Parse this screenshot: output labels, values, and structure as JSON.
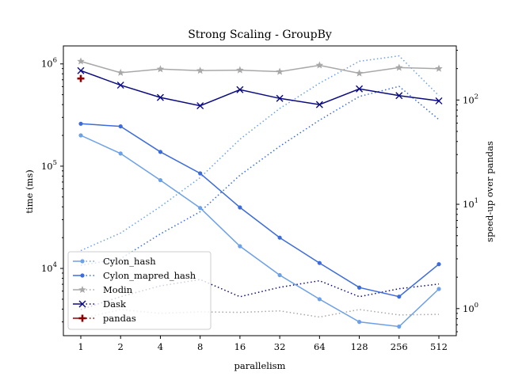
{
  "chart_data": {
    "type": "line",
    "title": "Strong Scaling - GroupBy",
    "xlabel": "parallelism",
    "ylabel": "time (ms)",
    "y2label": "speed-up over pandas",
    "x_scale": "log2",
    "y_scale": "log",
    "y2_scale": "log",
    "categories": [
      "1",
      "2",
      "4",
      "8",
      "16",
      "32",
      "64",
      "128",
      "256",
      "512"
    ],
    "y_ticks": [
      {
        "value": 10000,
        "label": "10^4"
      },
      {
        "value": 100000,
        "label": "10^5"
      },
      {
        "value": 1000000,
        "label": "10^6"
      }
    ],
    "y2_ticks": [
      {
        "value": 1,
        "label": "10^0"
      },
      {
        "value": 10,
        "label": "10^1"
      },
      {
        "value": 100,
        "label": "10^2"
      }
    ],
    "ylim": [
      2200,
      1500000
    ],
    "y2lim": [
      0.55,
      330
    ],
    "legend_position": "bottom-left",
    "grid": false,
    "series": [
      {
        "name": "Cylon_hash",
        "color": "#6ca0e8",
        "marker": "dot",
        "time_ms": [
          200000,
          133000,
          73000,
          39000,
          16500,
          8600,
          5000,
          3000,
          2700,
          6300
        ],
        "speedup": [
          3.6,
          5.3,
          9.5,
          18,
          42,
          83,
          145,
          235,
          265,
          110
        ]
      },
      {
        "name": "Cylon_mapred_hash",
        "color": "#3c6cdc",
        "marker": "dot",
        "time_ms": [
          260000,
          245000,
          138000,
          85000,
          39500,
          20000,
          11300,
          6500,
          5300,
          11000
        ],
        "speedup": [
          2.6,
          3,
          5.2,
          8.5,
          19,
          36,
          64,
          108,
          135,
          65
        ]
      },
      {
        "name": "Modin",
        "color": "#a8a8a8",
        "marker": "star",
        "time_ms": [
          1060000,
          820000,
          890000,
          860000,
          870000,
          840000,
          970000,
          810000,
          920000,
          900000
        ],
        "speedup": [
          0.8,
          0.98,
          0.9,
          0.93,
          0.92,
          0.95,
          0.83,
          0.98,
          0.87,
          0.88
        ]
      },
      {
        "name": "Dask",
        "color": "#0a0a80",
        "marker": "x",
        "time_ms": [
          860000,
          620000,
          470000,
          390000,
          560000,
          460000,
          400000,
          570000,
          490000,
          435000
        ],
        "speedup": [
          0.98,
          1.3,
          1.65,
          1.9,
          1.3,
          1.6,
          1.85,
          1.3,
          1.55,
          1.72
        ]
      },
      {
        "name": "pandas",
        "color": "#8b0000",
        "marker": "plus",
        "time_ms": [
          720000
        ],
        "speedup": []
      }
    ]
  }
}
